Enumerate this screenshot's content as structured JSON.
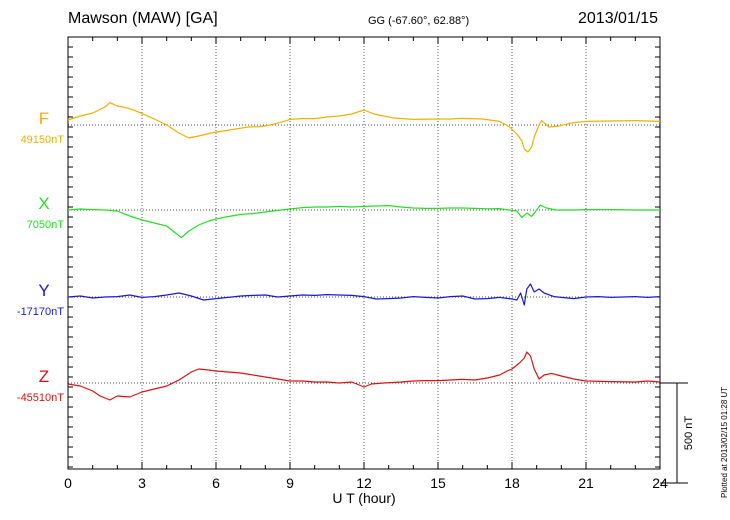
{
  "header": {
    "station": "Mawson (MAW)  [GA]",
    "coords": "GG (-67.60°,  62.88°)",
    "date": "2013/01/15"
  },
  "footer_note": "Plotted at 2013/02/15 01:28 UT",
  "chart_data": {
    "type": "line",
    "title": "Mawson (MAW)  [GA]",
    "xlabel": "U T (hour)",
    "xlim": [
      0,
      24
    ],
    "xticks": [
      0,
      3,
      6,
      9,
      12,
      15,
      18,
      21,
      24
    ],
    "grid": true,
    "scale_bar": {
      "label": "500 nT",
      "value_nT": 500
    },
    "series": [
      {
        "name": "F",
        "baseline_label": "49150nT",
        "baseline_nT": 49150,
        "color": "#f0b000",
        "points": [
          [
            0,
            49175
          ],
          [
            0.5,
            49195
          ],
          [
            1,
            49210
          ],
          [
            1.5,
            49240
          ],
          [
            1.7,
            49262
          ],
          [
            2,
            49245
          ],
          [
            2.3,
            49238
          ],
          [
            2.6,
            49228
          ],
          [
            3,
            49208
          ],
          [
            3.5,
            49180
          ],
          [
            4,
            49150
          ],
          [
            4.5,
            49110
          ],
          [
            4.9,
            49085
          ],
          [
            5.3,
            49095
          ],
          [
            5.8,
            49110
          ],
          [
            6.3,
            49120
          ],
          [
            6.8,
            49130
          ],
          [
            7.3,
            49140
          ],
          [
            7.8,
            49142
          ],
          [
            8.2,
            49150
          ],
          [
            8.6,
            49163
          ],
          [
            9,
            49178
          ],
          [
            9.5,
            49182
          ],
          [
            10,
            49182
          ],
          [
            10.5,
            49190
          ],
          [
            11,
            49195
          ],
          [
            11.5,
            49205
          ],
          [
            12,
            49225
          ],
          [
            12.4,
            49205
          ],
          [
            12.8,
            49195
          ],
          [
            13.2,
            49185
          ],
          [
            14,
            49178
          ],
          [
            15,
            49180
          ],
          [
            15.5,
            49180
          ],
          [
            16,
            49183
          ],
          [
            16.8,
            49180
          ],
          [
            17.5,
            49168
          ],
          [
            17.9,
            49140
          ],
          [
            18.2,
            49105
          ],
          [
            18.4,
            49070
          ],
          [
            18.5,
            49030
          ],
          [
            18.65,
            49015
          ],
          [
            18.8,
            49040
          ],
          [
            18.9,
            49090
          ],
          [
            19.1,
            49150
          ],
          [
            19.2,
            49172
          ],
          [
            19.5,
            49140
          ],
          [
            19.9,
            49145
          ],
          [
            20.5,
            49162
          ],
          [
            21,
            49168
          ],
          [
            22,
            49170
          ],
          [
            23,
            49172
          ],
          [
            23.5,
            49170
          ],
          [
            24,
            49168
          ]
        ]
      },
      {
        "name": "X",
        "baseline_label": "7050nT",
        "baseline_nT": 7050,
        "color": "#22e022",
        "points": [
          [
            0,
            7050
          ],
          [
            0.5,
            7055
          ],
          [
            1,
            7052
          ],
          [
            1.5,
            7050
          ],
          [
            2,
            7045
          ],
          [
            2.5,
            7020
          ],
          [
            3,
            7000
          ],
          [
            3.5,
            6985
          ],
          [
            4,
            6970
          ],
          [
            4.3,
            6940
          ],
          [
            4.6,
            6912
          ],
          [
            4.9,
            6945
          ],
          [
            5.3,
            6975
          ],
          [
            5.7,
            6995
          ],
          [
            6,
            7005
          ],
          [
            6.4,
            7015
          ],
          [
            7,
            7028
          ],
          [
            7.5,
            7032
          ],
          [
            8,
            7040
          ],
          [
            8.5,
            7048
          ],
          [
            9,
            7055
          ],
          [
            9.5,
            7062
          ],
          [
            10,
            7065
          ],
          [
            10.5,
            7065
          ],
          [
            11,
            7068
          ],
          [
            11.5,
            7065
          ],
          [
            12,
            7068
          ],
          [
            12.5,
            7070
          ],
          [
            13,
            7072
          ],
          [
            13.5,
            7065
          ],
          [
            14,
            7060
          ],
          [
            14.5,
            7058
          ],
          [
            15,
            7058
          ],
          [
            15.5,
            7060
          ],
          [
            16,
            7060
          ],
          [
            16.5,
            7058
          ],
          [
            17,
            7056
          ],
          [
            17.5,
            7057
          ],
          [
            18,
            7048
          ],
          [
            18.2,
            7045
          ],
          [
            18.4,
            7012
          ],
          [
            18.6,
            7035
          ],
          [
            18.8,
            7018
          ],
          [
            18.95,
            7042
          ],
          [
            19.15,
            7075
          ],
          [
            19.4,
            7060
          ],
          [
            19.8,
            7050
          ],
          [
            20.5,
            7050
          ],
          [
            21,
            7052
          ],
          [
            22,
            7052
          ],
          [
            23,
            7050
          ],
          [
            24,
            7050
          ]
        ]
      },
      {
        "name": "Y",
        "baseline_label": "-17170nT",
        "baseline_nT": -17170,
        "color": "#1818d8",
        "points": [
          [
            0,
            -17170
          ],
          [
            0.5,
            -17165
          ],
          [
            1,
            -17175
          ],
          [
            1.5,
            -17170
          ],
          [
            2,
            -17168
          ],
          [
            2.5,
            -17160
          ],
          [
            3,
            -17172
          ],
          [
            3.5,
            -17168
          ],
          [
            4,
            -17160
          ],
          [
            4.5,
            -17150
          ],
          [
            5,
            -17165
          ],
          [
            5.5,
            -17185
          ],
          [
            6,
            -17178
          ],
          [
            6.5,
            -17172
          ],
          [
            7,
            -17165
          ],
          [
            7.5,
            -17162
          ],
          [
            8,
            -17160
          ],
          [
            8.5,
            -17170
          ],
          [
            9,
            -17165
          ],
          [
            9.5,
            -17160
          ],
          [
            10,
            -17162
          ],
          [
            10.5,
            -17158
          ],
          [
            11,
            -17160
          ],
          [
            11.5,
            -17162
          ],
          [
            12,
            -17168
          ],
          [
            12.5,
            -17180
          ],
          [
            13,
            -17178
          ],
          [
            13.5,
            -17175
          ],
          [
            14,
            -17168
          ],
          [
            14.5,
            -17172
          ],
          [
            15,
            -17175
          ],
          [
            15.5,
            -17168
          ],
          [
            16,
            -17165
          ],
          [
            16.5,
            -17180
          ],
          [
            17,
            -17178
          ],
          [
            17.5,
            -17172
          ],
          [
            18,
            -17180
          ],
          [
            18.2,
            -17185
          ],
          [
            18.35,
            -17150
          ],
          [
            18.5,
            -17210
          ],
          [
            18.6,
            -17130
          ],
          [
            18.75,
            -17105
          ],
          [
            18.9,
            -17145
          ],
          [
            19.1,
            -17130
          ],
          [
            19.3,
            -17150
          ],
          [
            19.7,
            -17168
          ],
          [
            20,
            -17172
          ],
          [
            20.5,
            -17178
          ],
          [
            21,
            -17170
          ],
          [
            21.5,
            -17168
          ],
          [
            22,
            -17172
          ],
          [
            22.5,
            -17170
          ],
          [
            23,
            -17168
          ],
          [
            23.5,
            -17172
          ],
          [
            24,
            -17168
          ]
        ]
      },
      {
        "name": "Z",
        "baseline_label": "-45510nT",
        "baseline_nT": -45510,
        "color": "#e01010",
        "points": [
          [
            0,
            -45515
          ],
          [
            0.5,
            -45525
          ],
          [
            1,
            -45550
          ],
          [
            1.3,
            -45575
          ],
          [
            1.7,
            -45595
          ],
          [
            2,
            -45575
          ],
          [
            2.5,
            -45580
          ],
          [
            3,
            -45555
          ],
          [
            3.5,
            -45540
          ],
          [
            4,
            -45525
          ],
          [
            4.5,
            -45495
          ],
          [
            5,
            -45455
          ],
          [
            5.3,
            -45440
          ],
          [
            5.7,
            -45445
          ],
          [
            6,
            -45450
          ],
          [
            6.5,
            -45455
          ],
          [
            7,
            -45460
          ],
          [
            7.5,
            -45470
          ],
          [
            8,
            -45480
          ],
          [
            8.5,
            -45490
          ],
          [
            9,
            -45500
          ],
          [
            9.5,
            -45500
          ],
          [
            10,
            -45505
          ],
          [
            10.5,
            -45505
          ],
          [
            11,
            -45510
          ],
          [
            11.5,
            -45505
          ],
          [
            11.8,
            -45520
          ],
          [
            12,
            -45530
          ],
          [
            12.3,
            -45515
          ],
          [
            12.8,
            -45510
          ],
          [
            13.5,
            -45505
          ],
          [
            14,
            -45500
          ],
          [
            14.5,
            -45498
          ],
          [
            15,
            -45498
          ],
          [
            15.5,
            -45495
          ],
          [
            16,
            -45492
          ],
          [
            16.5,
            -45495
          ],
          [
            17,
            -45485
          ],
          [
            17.5,
            -45470
          ],
          [
            17.8,
            -45450
          ],
          [
            18,
            -45440
          ],
          [
            18.3,
            -45410
          ],
          [
            18.5,
            -45385
          ],
          [
            18.6,
            -45355
          ],
          [
            18.75,
            -45375
          ],
          [
            18.9,
            -45440
          ],
          [
            19.1,
            -45490
          ],
          [
            19.3,
            -45470
          ],
          [
            19.6,
            -45462
          ],
          [
            20,
            -45475
          ],
          [
            20.5,
            -45490
          ],
          [
            21,
            -45500
          ],
          [
            22,
            -45503
          ],
          [
            23,
            -45505
          ],
          [
            23.5,
            -45500
          ],
          [
            24,
            -45505
          ]
        ]
      }
    ]
  }
}
